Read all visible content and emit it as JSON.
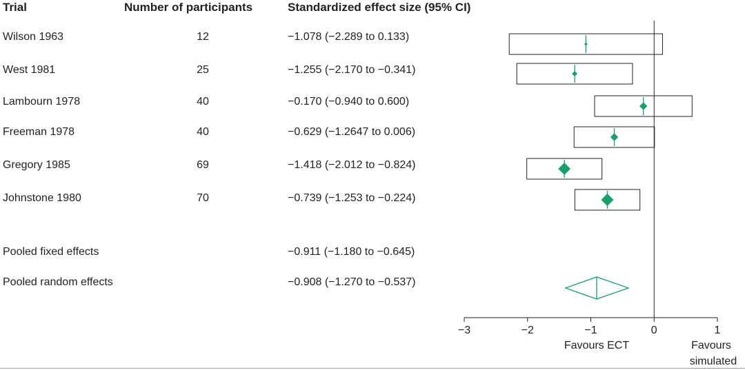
{
  "headers": {
    "trial": "Trial",
    "participants": "Number of participants",
    "effect": "Standardized effect size (95% CI)"
  },
  "studies": [
    {
      "trial": "Wilson 1963",
      "n": "12",
      "ci_text": "−1.078 (−2.289 to 0.133)"
    },
    {
      "trial": "West 1981",
      "n": "25",
      "ci_text": "−1.255 (−2.170 to −0.341)"
    },
    {
      "trial": "Lambourn 1978",
      "n": "40",
      "ci_text": "−0.170 (−0.940 to 0.600)"
    },
    {
      "trial": "Freeman 1978",
      "n": "40",
      "ci_text": "−0.629 (−1.2647 to 0.006)"
    },
    {
      "trial": "Gregory 1985",
      "n": "69",
      "ci_text": "−1.418 (−2.012 to −0.824)"
    },
    {
      "trial": "Johnstone 1980",
      "n": "70",
      "ci_text": "−0.739 (−1.253 to −0.224)"
    }
  ],
  "pooled": [
    {
      "label": "Pooled fixed effects",
      "ci_text": "−0.911 (−1.180 to −0.645)"
    },
    {
      "label": "Pooled random effects",
      "ci_text": "−0.908 (−1.270 to −0.537)"
    }
  ],
  "axis_labels": {
    "left": "Favours ECT",
    "right_line1": "Favours",
    "right_line2": "simulated"
  },
  "colors": {
    "marker": "#16a06a",
    "box": "#222222",
    "axis": "#222222"
  },
  "chart_data": {
    "type": "forest",
    "xlim": [
      -3,
      1
    ],
    "xticks": [
      -3,
      -2,
      -1,
      0,
      1
    ],
    "xtick_labels": [
      "−3",
      "−2",
      "−1",
      "0",
      "1"
    ],
    "reference_line": 0,
    "studies": [
      {
        "name": "Wilson 1963",
        "participants": 12,
        "estimate": -1.078,
        "lower": -2.289,
        "upper": 0.133
      },
      {
        "name": "West 1981",
        "participants": 25,
        "estimate": -1.255,
        "lower": -2.17,
        "upper": -0.341
      },
      {
        "name": "Lambourn 1978",
        "participants": 40,
        "estimate": -0.17,
        "lower": -0.94,
        "upper": 0.6
      },
      {
        "name": "Freeman 1978",
        "participants": 40,
        "estimate": -0.629,
        "lower": -1.2647,
        "upper": 0.006
      },
      {
        "name": "Gregory 1985",
        "participants": 69,
        "estimate": -1.418,
        "lower": -2.012,
        "upper": -0.824
      },
      {
        "name": "Johnstone 1980",
        "participants": 70,
        "estimate": -0.739,
        "lower": -1.253,
        "upper": -0.224
      }
    ],
    "pooled": [
      {
        "name": "Pooled fixed effects",
        "estimate": -0.911,
        "lower": -1.18,
        "upper": -0.645
      },
      {
        "name": "Pooled random effects",
        "estimate": -0.908,
        "lower": -1.27,
        "upper": -0.537
      }
    ]
  }
}
